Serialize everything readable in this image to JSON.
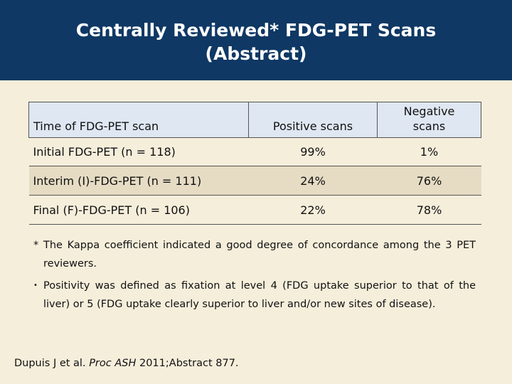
{
  "title": {
    "line1": "Centrally Reviewed* FDG-PET Scans",
    "line2": "(Abstract)"
  },
  "table": {
    "headers": {
      "time": "Time of FDG-PET scan",
      "positive": "Positive scans",
      "negative_line1": "Negative",
      "negative_line2": "scans"
    },
    "rows": [
      {
        "time": "Initial FDG-PET (n = 118)",
        "positive": "99%",
        "negative": "1%"
      },
      {
        "time": "Interim (I)-FDG-PET (n = 111)",
        "positive": "24%",
        "negative": "76%"
      },
      {
        "time": "Final (F)-FDG-PET (n = 106)",
        "positive": "22%",
        "negative": "78%"
      }
    ]
  },
  "notes": {
    "asterisk_mark": "*",
    "asterisk_text": "The Kappa coefficient indicated a good degree of concordance among the 3 PET reviewers.",
    "bullet_mark": "•",
    "bullet_text": "Positivity was defined as fixation at level 4 (FDG uptake superior to that of the liver) or 5 (FDG uptake clearly superior to liver and/or new sites of disease)."
  },
  "reference": {
    "authors": "Dupuis J et al. ",
    "journal": "Proc ASH",
    "citation": " 2011;Abstract 877."
  }
}
